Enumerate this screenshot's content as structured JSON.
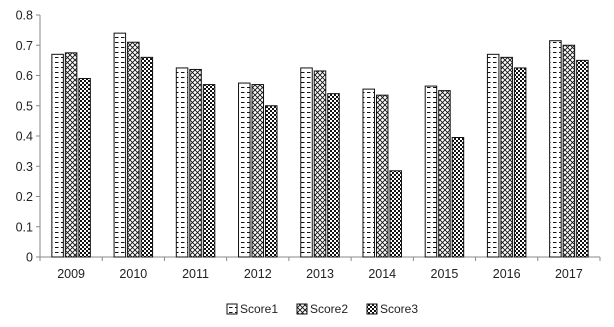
{
  "chart_data": {
    "type": "bar",
    "title": "",
    "xlabel": "",
    "ylabel": "",
    "categories": [
      "2009",
      "2010",
      "2011",
      "2012",
      "2013",
      "2014",
      "2015",
      "2016",
      "2017"
    ],
    "series": [
      {
        "name": "Score1",
        "values": [
          0.67,
          0.74,
          0.625,
          0.575,
          0.625,
          0.555,
          0.565,
          0.67,
          0.715
        ]
      },
      {
        "name": "Score2",
        "values": [
          0.675,
          0.71,
          0.62,
          0.57,
          0.615,
          0.535,
          0.55,
          0.66,
          0.7
        ]
      },
      {
        "name": "Score3",
        "values": [
          0.59,
          0.66,
          0.57,
          0.5,
          0.54,
          0.285,
          0.395,
          0.625,
          0.65
        ]
      }
    ],
    "ylim": [
      0,
      0.8
    ],
    "yticks": [
      "0",
      "0.1",
      "0.2",
      "0.3",
      "0.4",
      "0.5",
      "0.6",
      "0.7",
      "0.8"
    ],
    "grid": false,
    "legend_position": "bottom-center"
  }
}
